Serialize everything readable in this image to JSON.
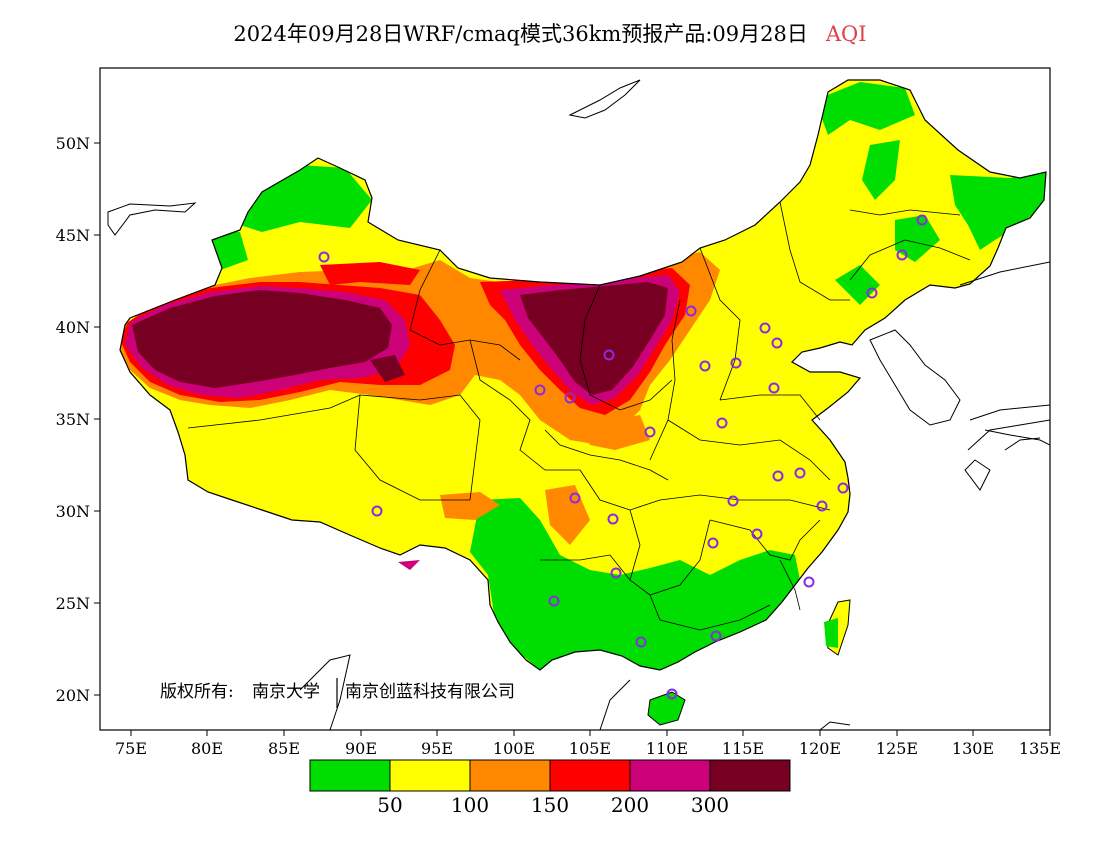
{
  "title": {
    "main": "2024年09月28日WRF/cmaq模式36km预报产品:09月28日",
    "variable": "AQI",
    "variable_color": "#e0404a"
  },
  "map": {
    "lat_labels": [
      "50N",
      "45N",
      "40N",
      "35N",
      "30N",
      "25N",
      "20N"
    ],
    "lon_labels": [
      "75E",
      "80E",
      "85E",
      "90E",
      "95E",
      "100E",
      "105E",
      "110E",
      "115E",
      "120E",
      "125E",
      "130E",
      "135E"
    ],
    "copyright_label": "版权所有:",
    "copyright_org1": "南京大学",
    "copyright_org2": "南京创蓝科技有限公司"
  },
  "legend": {
    "colors": [
      "#00dd00",
      "#ffff00",
      "#ff8800",
      "#ff0000",
      "#cc0077",
      "#770022"
    ],
    "breaks": [
      "50",
      "100",
      "150",
      "200",
      "300"
    ]
  },
  "colors": {
    "good": "#00dd00",
    "moderate": "#ffff00",
    "usg": "#ff8800",
    "unhealthy": "#ff0000",
    "very_unhealthy": "#cc0077",
    "hazardous": "#770022",
    "station_marker": "#8a2be2"
  }
}
